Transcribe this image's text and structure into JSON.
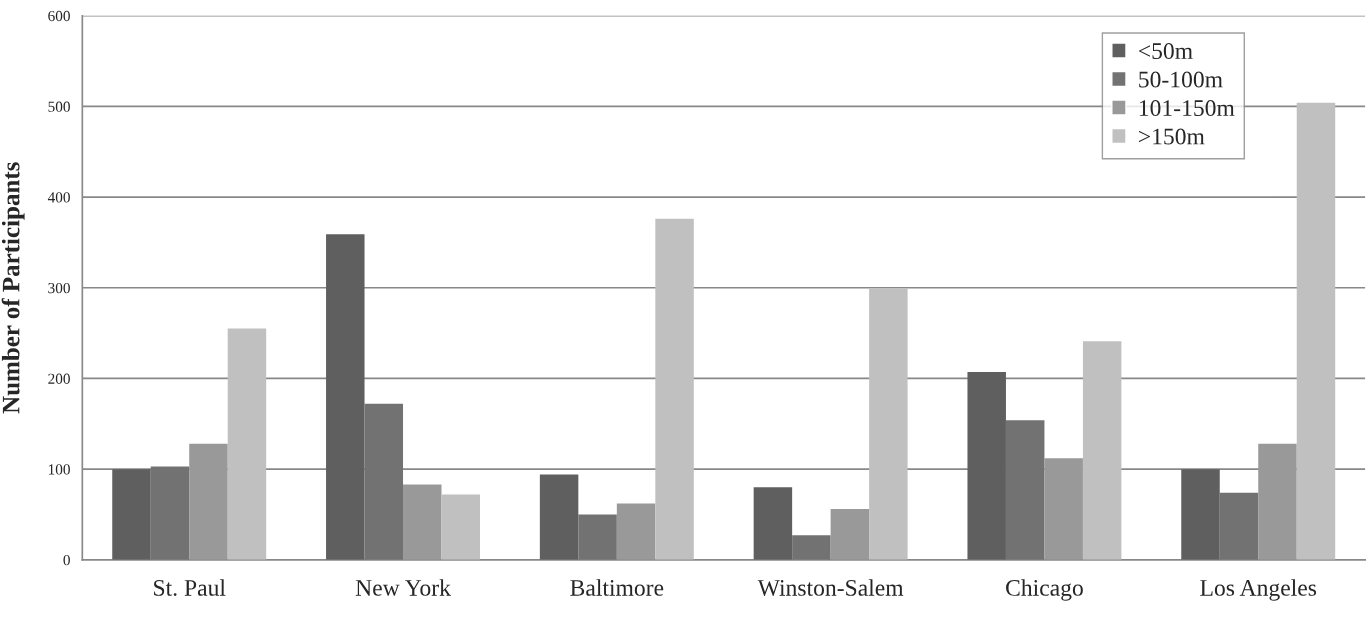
{
  "chart_data": {
    "type": "bar",
    "ylabel": "Number of Participants",
    "categories": [
      "St. Paul",
      "New York",
      "Baltimore",
      "Winston-Salem",
      "Chicago",
      "Los Angeles"
    ],
    "series": [
      {
        "name": "<50m",
        "color": "#5f5f5f",
        "values": [
          100,
          359,
          94,
          80,
          207,
          100
        ]
      },
      {
        "name": "50-100m",
        "color": "#727272",
        "values": [
          103,
          172,
          50,
          27,
          154,
          74
        ]
      },
      {
        "name": "101-150m",
        "color": "#999999",
        "values": [
          128,
          83,
          62,
          56,
          112,
          128
        ]
      },
      {
        "name": ">150m",
        "color": "#c0c0c0",
        "values": [
          255,
          72,
          376,
          299,
          241,
          504
        ]
      }
    ],
    "ylim": [
      0,
      600
    ],
    "yticks": [
      0,
      100,
      200,
      300,
      400,
      500,
      600
    ],
    "grid": "y",
    "legend": "top right"
  }
}
